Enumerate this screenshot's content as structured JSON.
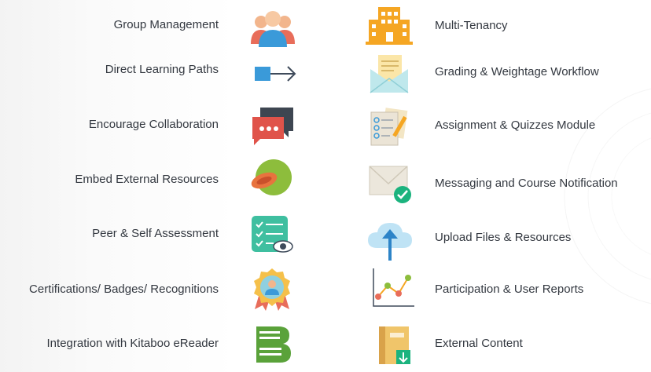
{
  "left_features": [
    {
      "label": "Group Management",
      "icon": "group-icon"
    },
    {
      "label": "Direct Learning Paths",
      "icon": "arrow-path-icon"
    },
    {
      "label": "Encourage Collaboration",
      "icon": "chat-bubbles-icon"
    },
    {
      "label": "Embed External Resources",
      "icon": "embed-resource-icon"
    },
    {
      "label": "Peer & Self Assessment",
      "icon": "assessment-checklist-icon"
    },
    {
      "label": "Certifications/ Badges/ Recognitions",
      "icon": "badge-medal-icon"
    },
    {
      "label": "Integration with Kitaboo eReader",
      "icon": "ereader-book-icon"
    }
  ],
  "right_features": [
    {
      "label": "Multi-Tenancy",
      "icon": "building-icon"
    },
    {
      "label": "Grading & Weightage Workflow",
      "icon": "envelope-document-icon"
    },
    {
      "label": "Assignment & Quizzes  Module",
      "icon": "clipboard-quiz-icon"
    },
    {
      "label": "Messaging and Course Notification",
      "icon": "mail-check-icon"
    },
    {
      "label": "Upload Files & Resources",
      "icon": "cloud-upload-icon"
    },
    {
      "label": "Participation & User Reports",
      "icon": "line-chart-icon"
    },
    {
      "label": "External Content",
      "icon": "notebook-download-icon"
    }
  ]
}
